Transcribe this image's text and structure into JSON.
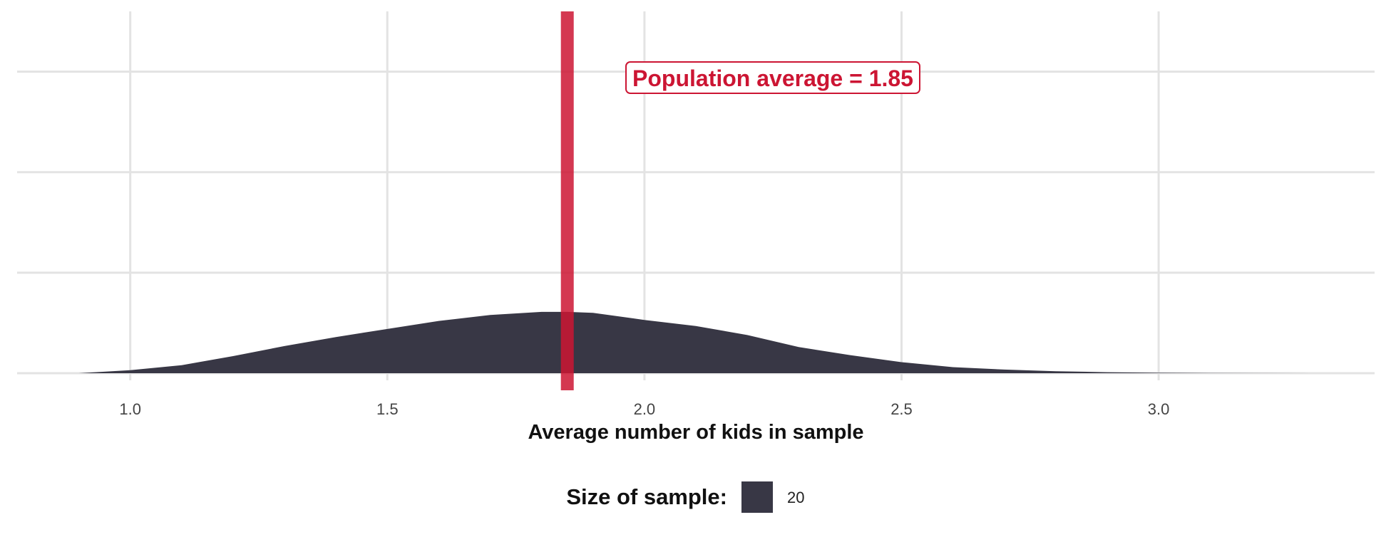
{
  "chart_data": {
    "type": "area",
    "xlabel": "Average number of kids in sample",
    "ylabel": "",
    "xlim": [
      0.78,
      3.42
    ],
    "ylim": [
      0,
      1.8
    ],
    "x_ticks": [
      1.0,
      1.5,
      2.0,
      2.5,
      3.0
    ],
    "x_tick_labels": [
      "1.0",
      "1.5",
      "2.0",
      "2.5",
      "3.0"
    ],
    "y_gridlines": [
      0,
      0.5,
      1.0,
      1.5
    ],
    "grid": true,
    "series": [
      {
        "name": "20",
        "color": "#383745",
        "x": [
          0.9,
          1.0,
          1.1,
          1.2,
          1.3,
          1.4,
          1.5,
          1.6,
          1.7,
          1.8,
          1.85,
          1.9,
          2.0,
          2.1,
          2.2,
          2.3,
          2.4,
          2.5,
          2.6,
          2.7,
          2.8,
          2.9,
          3.0,
          3.1,
          3.2,
          3.3
        ],
        "y": [
          0.0,
          0.015,
          0.04,
          0.085,
          0.135,
          0.18,
          0.22,
          0.26,
          0.29,
          0.305,
          0.305,
          0.3,
          0.265,
          0.235,
          0.19,
          0.13,
          0.09,
          0.055,
          0.03,
          0.018,
          0.01,
          0.005,
          0.002,
          0.001,
          0.0005,
          0.0
        ]
      }
    ],
    "reference_line": {
      "x": 1.85,
      "color": "#CC1533",
      "label": "Population average = 1.85"
    },
    "legend": {
      "position": "bottom",
      "title": "Size of sample:",
      "items": [
        {
          "label": "20",
          "color": "#383745"
        }
      ]
    }
  }
}
